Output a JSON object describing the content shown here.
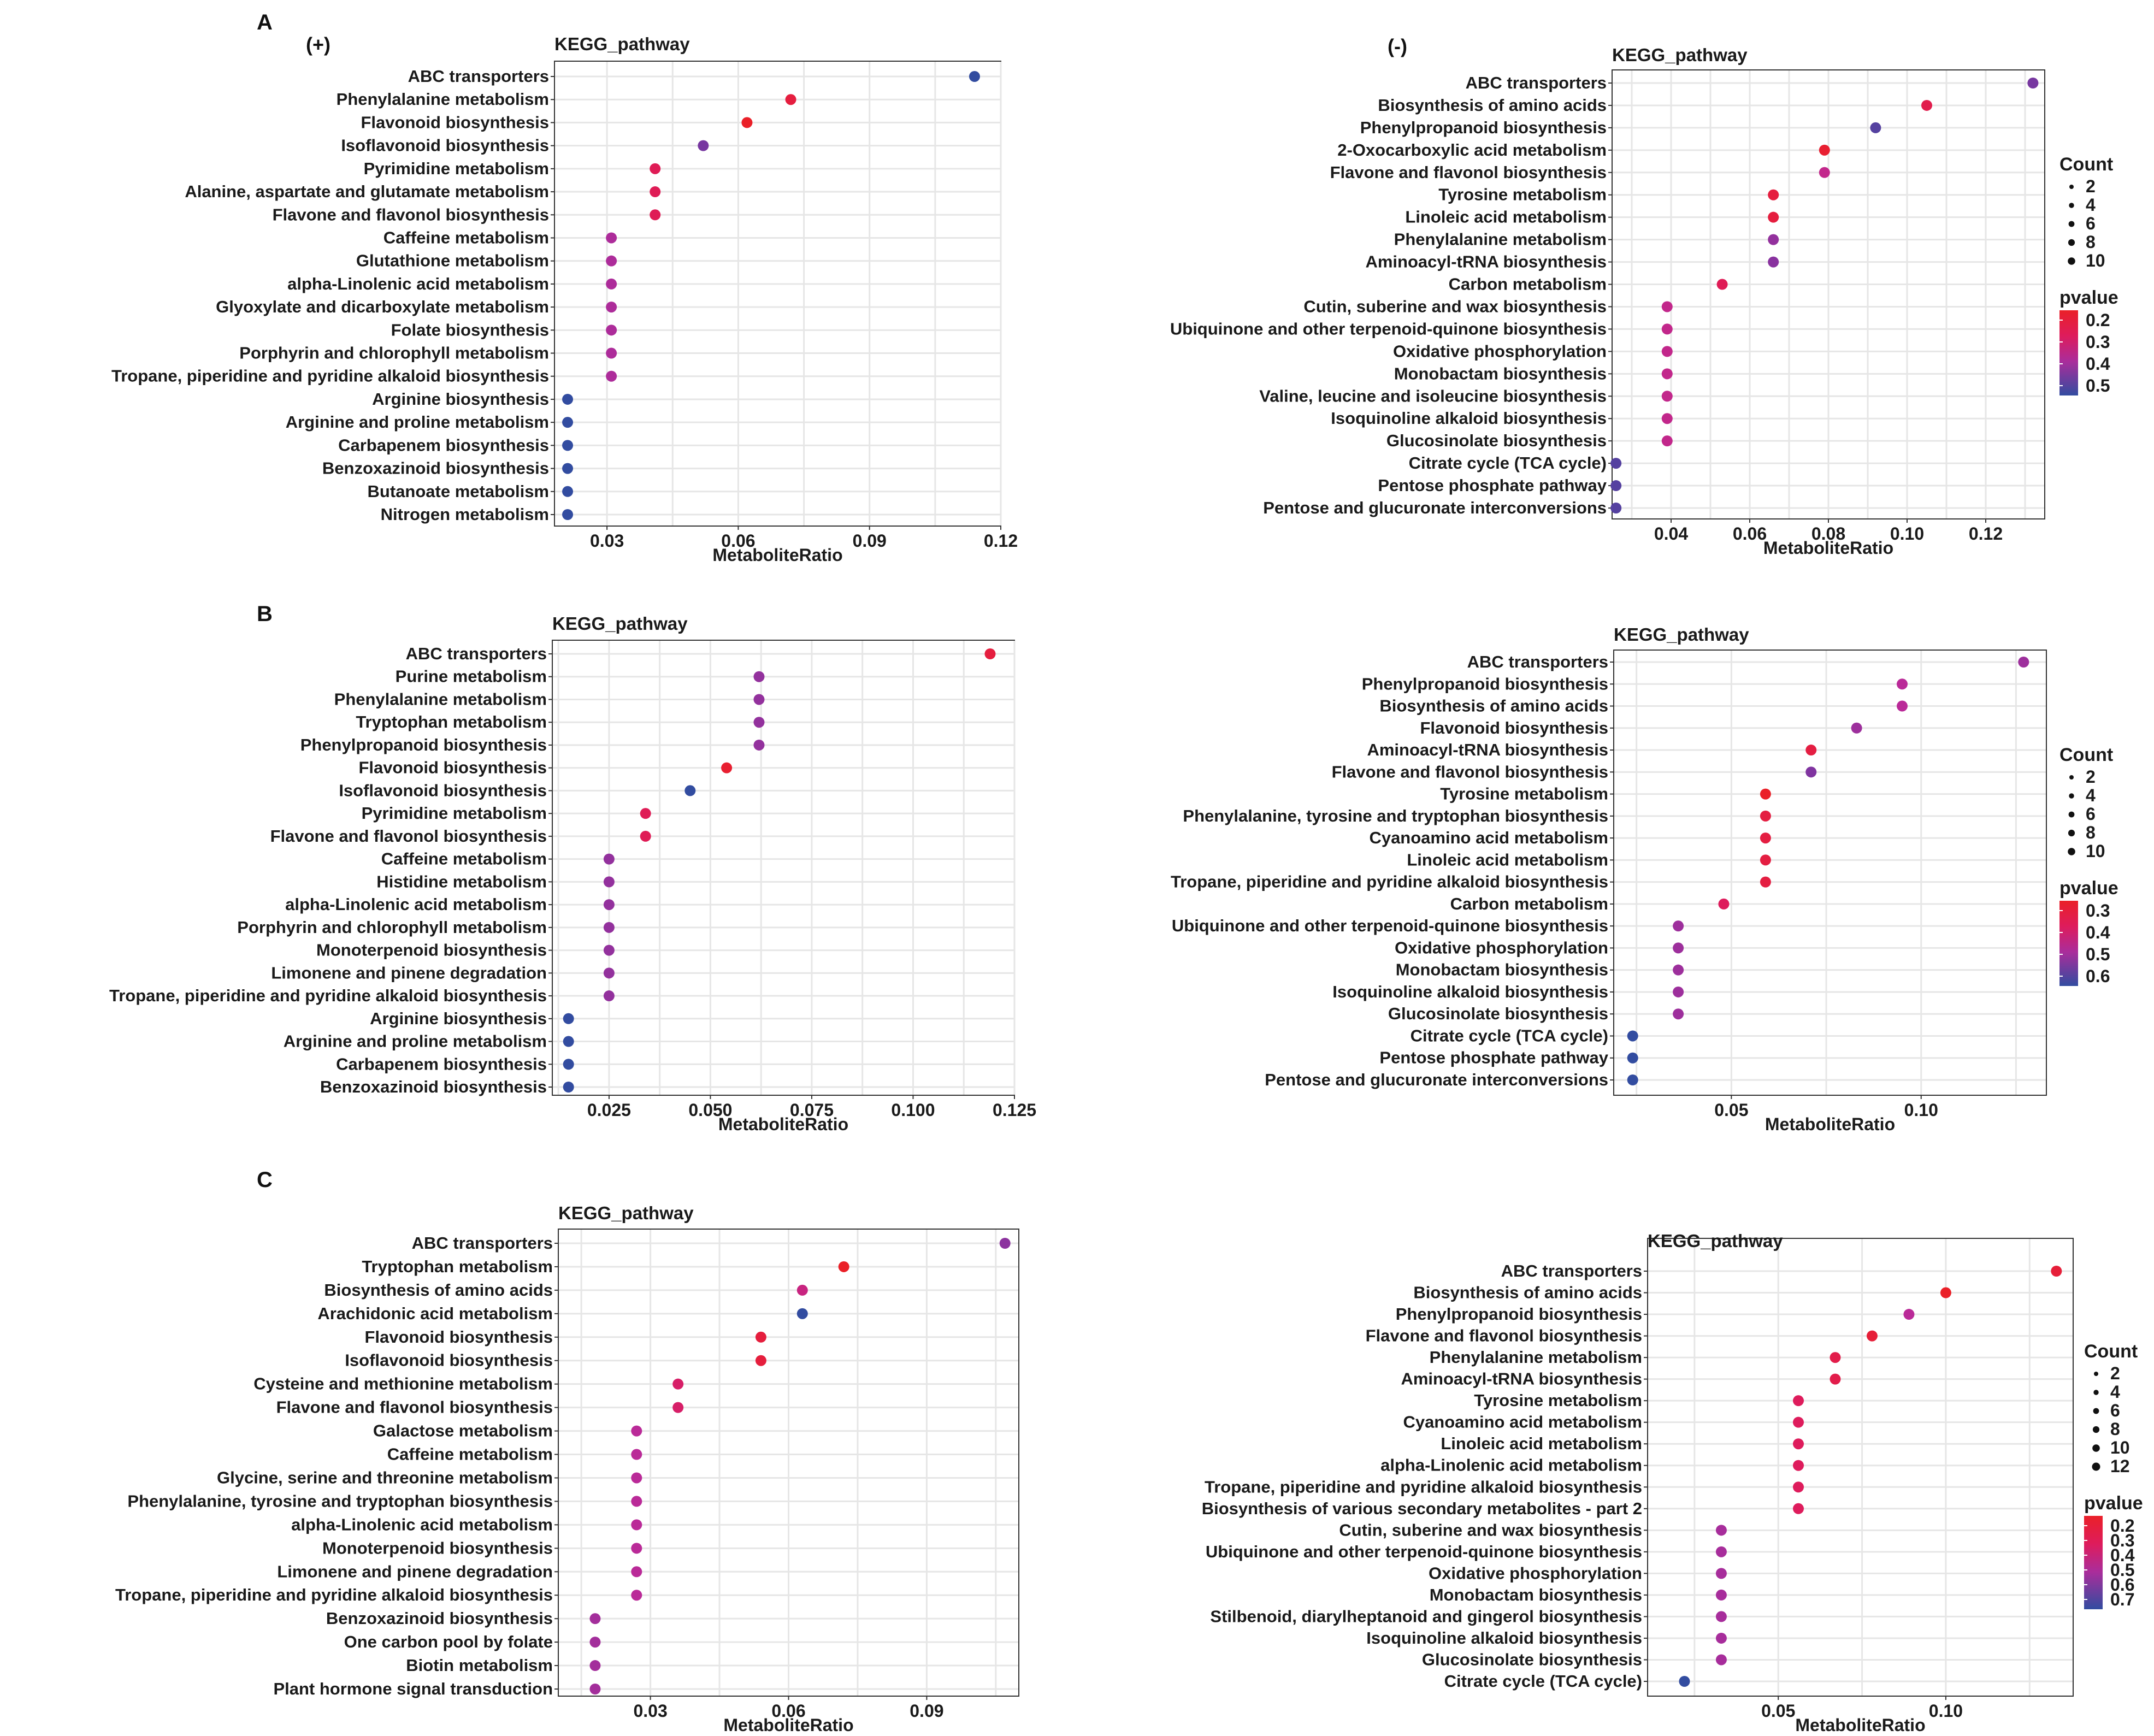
{
  "panel_labels": {
    "a": "A",
    "b": "B",
    "c": "C"
  },
  "mode_labels": {
    "pos": "(+)",
    "neg": "(-)"
  },
  "chart_data": [
    {
      "id": "A_pos",
      "type": "scatter",
      "title": "KEGG_pathway",
      "xlabel": "MetaboliteRatio",
      "xlim": [
        0.018,
        0.12
      ],
      "xticks": [
        0.03,
        0.06,
        0.09,
        0.12
      ],
      "xtick_labels": [
        "0.03",
        "0.06",
        "0.09",
        "0.12"
      ],
      "categories": [
        "ABC transporters",
        "Phenylalanine metabolism",
        "Flavonoid biosynthesis",
        "Isoflavonoid biosynthesis",
        "Pyrimidine metabolism",
        "Alanine, aspartate and glutamate metabolism",
        "Flavone and flavonol biosynthesis",
        "Caffeine metabolism",
        "Glutathione metabolism",
        "alpha-Linolenic acid metabolism",
        "Glyoxylate and dicarboxylate metabolism",
        "Folate biosynthesis",
        "Porphyrin and chlorophyll metabolism",
        "Tropane, piperidine and pyridine alkaloid biosynthesis",
        "Arginine biosynthesis",
        "Arginine and proline metabolism",
        "Carbapenem biosynthesis",
        "Benzoxazinoid biosynthesis",
        "Butanoate metabolism",
        "Nitrogen metabolism"
      ],
      "values": [
        0.114,
        0.072,
        0.062,
        0.052,
        0.041,
        0.041,
        0.041,
        0.031,
        0.031,
        0.031,
        0.031,
        0.031,
        0.031,
        0.031,
        0.021,
        0.021,
        0.021,
        0.021,
        0.021,
        0.021
      ],
      "pvalues": [
        0.5,
        0.1,
        0.05,
        0.4,
        0.15,
        0.15,
        0.15,
        0.3,
        0.3,
        0.3,
        0.3,
        0.3,
        0.3,
        0.3,
        0.5,
        0.5,
        0.5,
        0.5,
        0.5,
        0.5
      ],
      "pvalue_range": [
        0.05,
        0.5
      ],
      "legend": null
    },
    {
      "id": "A_neg",
      "type": "scatter",
      "title": "KEGG_pathway",
      "xlabel": "MetaboliteRatio",
      "xlim": [
        0.025,
        0.135
      ],
      "xticks": [
        0.04,
        0.06,
        0.08,
        0.1,
        0.12
      ],
      "xtick_labels": [
        "0.04",
        "0.06",
        "0.08",
        "0.10",
        "0.12"
      ],
      "categories": [
        "ABC transporters",
        "Biosynthesis of amino acids",
        "Phenylpropanoid biosynthesis",
        "2-Oxocarboxylic acid metabolism",
        "Flavone and flavonol biosynthesis",
        "Tyrosine metabolism",
        "Linoleic acid metabolism",
        "Phenylalanine metabolism",
        "Aminoacyl-tRNA biosynthesis",
        "Carbon metabolism",
        "Cutin, suberine and wax biosynthesis",
        "Ubiquinone and other terpenoid-quinone biosynthesis",
        "Oxidative phosphorylation",
        "Monobactam biosynthesis",
        "Valine, leucine and isoleucine biosynthesis",
        "Isoquinoline alkaloid biosynthesis",
        "Glucosinolate biosynthesis",
        "Citrate cycle (TCA cycle)",
        "Pentose phosphate pathway",
        "Pentose and glucuronate interconversions"
      ],
      "values": [
        0.132,
        0.105,
        0.092,
        0.079,
        0.079,
        0.066,
        0.066,
        0.066,
        0.066,
        0.053,
        0.039,
        0.039,
        0.039,
        0.039,
        0.039,
        0.039,
        0.039,
        0.026,
        0.026,
        0.026
      ],
      "pvalues": [
        0.45,
        0.18,
        0.5,
        0.12,
        0.3,
        0.15,
        0.15,
        0.4,
        0.42,
        0.2,
        0.3,
        0.3,
        0.3,
        0.3,
        0.3,
        0.3,
        0.3,
        0.5,
        0.5,
        0.5
      ],
      "pvalue_range": [
        0.1,
        0.55
      ],
      "legend": {
        "count_title": "Count",
        "count_labels": [
          "2",
          "4",
          "6",
          "8",
          "10"
        ],
        "p_title": "pvalue",
        "p_labels": [
          "0.2",
          "0.3",
          "0.4",
          "0.5"
        ]
      }
    },
    {
      "id": "B_pos",
      "type": "scatter",
      "title": "KEGG_pathway",
      "xlabel": "MetaboliteRatio",
      "xlim": [
        0.011,
        0.125
      ],
      "xticks": [
        0.025,
        0.05,
        0.075,
        0.1,
        0.125
      ],
      "xtick_labels": [
        "0.025",
        "0.050",
        "0.075",
        "0.100",
        "0.125"
      ],
      "categories": [
        "ABC transporters",
        "Purine metabolism",
        "Phenylalanine metabolism",
        "Tryptophan metabolism",
        "Phenylpropanoid biosynthesis",
        "Flavonoid biosynthesis",
        "Isoflavonoid biosynthesis",
        "Pyrimidine metabolism",
        "Flavone and flavonol biosynthesis",
        "Caffeine metabolism",
        "Histidine metabolism",
        "alpha-Linolenic acid metabolism",
        "Porphyrin and chlorophyll metabolism",
        "Monoterpenoid biosynthesis",
        "Limonene and pinene degradation",
        "Tropane, piperidine and pyridine alkaloid biosynthesis",
        "Arginine biosynthesis",
        "Arginine and proline metabolism",
        "Carbapenem biosynthesis",
        "Benzoxazinoid biosynthesis"
      ],
      "values": [
        0.119,
        0.062,
        0.062,
        0.062,
        0.062,
        0.054,
        0.045,
        0.034,
        0.034,
        0.025,
        0.025,
        0.025,
        0.025,
        0.025,
        0.025,
        0.025,
        0.015,
        0.015,
        0.015,
        0.015
      ],
      "pvalues": [
        0.15,
        0.4,
        0.4,
        0.4,
        0.4,
        0.12,
        0.55,
        0.2,
        0.2,
        0.4,
        0.4,
        0.4,
        0.4,
        0.4,
        0.4,
        0.4,
        0.55,
        0.55,
        0.55,
        0.55
      ],
      "pvalue_range": [
        0.1,
        0.55
      ],
      "legend": null
    },
    {
      "id": "B_neg",
      "type": "scatter",
      "title": "KEGG_pathway",
      "xlabel": "MetaboliteRatio",
      "xlim": [
        0.019,
        0.133
      ],
      "xticks": [
        0.05,
        0.1
      ],
      "xtick_labels": [
        "0.05",
        "0.10"
      ],
      "categories": [
        "ABC transporters",
        "Phenylpropanoid biosynthesis",
        "Biosynthesis of amino acids",
        "Flavonoid biosynthesis",
        "Aminoacyl-tRNA biosynthesis",
        "Flavone and flavonol biosynthesis",
        "Tyrosine metabolism",
        "Phenylalanine, tyrosine and tryptophan biosynthesis",
        "Cyanoamino acid metabolism",
        "Linoleic acid metabolism",
        "Tropane, piperidine and pyridine alkaloid biosynthesis",
        "Carbon metabolism",
        "Ubiquinone and other terpenoid-quinone biosynthesis",
        "Oxidative phosphorylation",
        "Monobactam biosynthesis",
        "Isoquinoline alkaloid biosynthesis",
        "Glucosinolate biosynthesis",
        "Citrate cycle (TCA cycle)",
        "Pentose phosphate pathway",
        "Pentose and glucuronate interconversions"
      ],
      "values": [
        0.127,
        0.095,
        0.095,
        0.083,
        0.071,
        0.071,
        0.059,
        0.059,
        0.059,
        0.059,
        0.059,
        0.048,
        0.036,
        0.036,
        0.036,
        0.036,
        0.036,
        0.024,
        0.024,
        0.024
      ],
      "pvalues": [
        0.5,
        0.45,
        0.45,
        0.5,
        0.3,
        0.55,
        0.25,
        0.3,
        0.3,
        0.3,
        0.3,
        0.35,
        0.5,
        0.5,
        0.5,
        0.5,
        0.5,
        0.65,
        0.65,
        0.65
      ],
      "pvalue_range": [
        0.25,
        0.65
      ],
      "legend": {
        "count_title": "Count",
        "count_labels": [
          "2",
          "4",
          "6",
          "8",
          "10"
        ],
        "p_title": "pvalue",
        "p_labels": [
          "0.3",
          "0.4",
          "0.5",
          "0.6"
        ]
      }
    },
    {
      "id": "C_pos",
      "type": "scatter",
      "title": "KEGG_pathway",
      "xlabel": "MetaboliteRatio",
      "xlim": [
        0.01,
        0.11
      ],
      "xticks": [
        0.03,
        0.06,
        0.09
      ],
      "xtick_labels": [
        "0.03",
        "0.06",
        "0.09"
      ],
      "categories": [
        "ABC transporters",
        "Tryptophan metabolism",
        "Biosynthesis of amino acids",
        "Arachidonic acid metabolism",
        "Flavonoid biosynthesis",
        "Isoflavonoid biosynthesis",
        "Cysteine and methionine metabolism",
        "Flavone and flavonol biosynthesis",
        "Galactose metabolism",
        "Caffeine metabolism",
        "Glycine, serine and threonine metabolism",
        "Phenylalanine, tyrosine and tryptophan biosynthesis",
        "alpha-Linolenic acid metabolism",
        "Monoterpenoid biosynthesis",
        "Limonene and pinene degradation",
        "Tropane, piperidine and pyridine alkaloid biosynthesis",
        "Benzoxazinoid biosynthesis",
        "One carbon pool by folate",
        "Biotin metabolism",
        "Plant hormone signal transduction"
      ],
      "values": [
        0.107,
        0.072,
        0.063,
        0.063,
        0.054,
        0.054,
        0.036,
        0.036,
        0.027,
        0.027,
        0.027,
        0.027,
        0.027,
        0.027,
        0.027,
        0.027,
        0.018,
        0.018,
        0.018,
        0.018
      ],
      "pvalues": [
        0.45,
        0.1,
        0.3,
        0.6,
        0.15,
        0.15,
        0.25,
        0.25,
        0.35,
        0.35,
        0.35,
        0.35,
        0.35,
        0.35,
        0.35,
        0.35,
        0.4,
        0.4,
        0.4,
        0.4
      ],
      "pvalue_range": [
        0.1,
        0.6
      ],
      "legend": null
    },
    {
      "id": "C_neg",
      "type": "scatter",
      "title": "KEGG_pathway",
      "xlabel": "MetaboliteRatio",
      "xlim": [
        0.011,
        0.138
      ],
      "xticks": [
        0.05,
        0.1
      ],
      "xtick_labels": [
        "0.05",
        "0.10"
      ],
      "categories": [
        "ABC transporters",
        "Biosynthesis of amino acids",
        "Phenylpropanoid biosynthesis",
        "Flavone and flavonol biosynthesis",
        "Phenylalanine metabolism",
        "Aminoacyl-tRNA biosynthesis",
        "Tyrosine metabolism",
        "Cyanoamino acid metabolism",
        "Linoleic acid metabolism",
        "alpha-Linolenic acid metabolism",
        "Tropane, piperidine and pyridine alkaloid biosynthesis",
        "Biosynthesis of various secondary metabolites - part 2",
        "Cutin, suberine and wax biosynthesis",
        "Ubiquinone and other terpenoid-quinone biosynthesis",
        "Oxidative phosphorylation",
        "Monobactam biosynthesis",
        "Stilbenoid, diarylheptanoid and gingerol biosynthesis",
        "Isoquinoline alkaloid biosynthesis",
        "Glucosinolate biosynthesis",
        "Citrate cycle (TCA cycle)"
      ],
      "values": [
        0.133,
        0.1,
        0.089,
        0.078,
        0.067,
        0.067,
        0.056,
        0.056,
        0.056,
        0.056,
        0.056,
        0.056,
        0.033,
        0.033,
        0.033,
        0.033,
        0.033,
        0.033,
        0.033,
        0.022
      ],
      "pvalues": [
        0.2,
        0.15,
        0.45,
        0.2,
        0.25,
        0.25,
        0.3,
        0.3,
        0.3,
        0.3,
        0.3,
        0.3,
        0.5,
        0.5,
        0.5,
        0.5,
        0.5,
        0.5,
        0.5,
        0.75
      ],
      "pvalue_range": [
        0.15,
        0.75
      ],
      "legend": {
        "count_title": "Count",
        "count_labels": [
          "2",
          "4",
          "6",
          "8",
          "10",
          "12"
        ],
        "p_title": "pvalue",
        "p_labels": [
          "0.2",
          "0.3",
          "0.4",
          "0.5",
          "0.6",
          "0.7"
        ]
      }
    }
  ]
}
